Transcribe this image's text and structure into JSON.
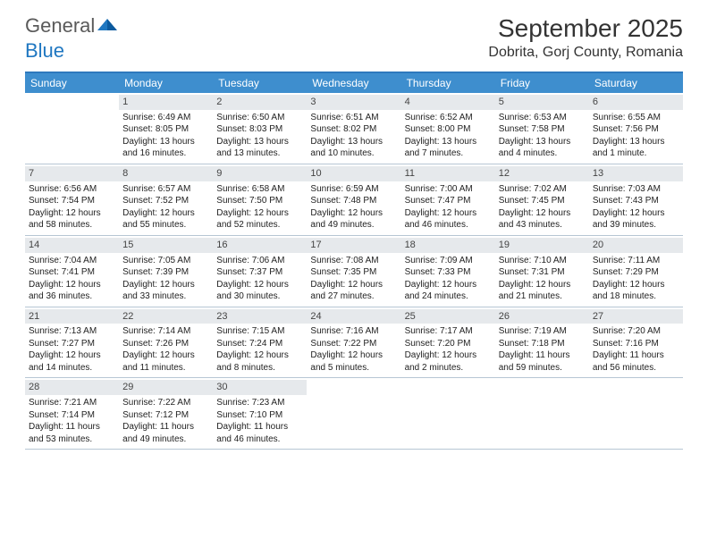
{
  "brand": {
    "part1": "General",
    "part2": "Blue"
  },
  "title": "September 2025",
  "location": "Dobrita, Gorj County, Romania",
  "colors": {
    "header_band": "#3e8ece",
    "header_border": "#2e79bd",
    "daynum_band": "#e6e9ec",
    "row_divider": "#b7c6d4",
    "text": "#222222",
    "logo_gray": "#5a5a5a",
    "logo_blue": "#1f77c1"
  },
  "weekdays": [
    "Sunday",
    "Monday",
    "Tuesday",
    "Wednesday",
    "Thursday",
    "Friday",
    "Saturday"
  ],
  "weeks": [
    [
      {
        "empty": true
      },
      {
        "n": "1",
        "sunrise": "6:49 AM",
        "sunset": "8:05 PM",
        "daylight": "13 hours and 16 minutes."
      },
      {
        "n": "2",
        "sunrise": "6:50 AM",
        "sunset": "8:03 PM",
        "daylight": "13 hours and 13 minutes."
      },
      {
        "n": "3",
        "sunrise": "6:51 AM",
        "sunset": "8:02 PM",
        "daylight": "13 hours and 10 minutes."
      },
      {
        "n": "4",
        "sunrise": "6:52 AM",
        "sunset": "8:00 PM",
        "daylight": "13 hours and 7 minutes."
      },
      {
        "n": "5",
        "sunrise": "6:53 AM",
        "sunset": "7:58 PM",
        "daylight": "13 hours and 4 minutes."
      },
      {
        "n": "6",
        "sunrise": "6:55 AM",
        "sunset": "7:56 PM",
        "daylight": "13 hours and 1 minute."
      }
    ],
    [
      {
        "n": "7",
        "sunrise": "6:56 AM",
        "sunset": "7:54 PM",
        "daylight": "12 hours and 58 minutes."
      },
      {
        "n": "8",
        "sunrise": "6:57 AM",
        "sunset": "7:52 PM",
        "daylight": "12 hours and 55 minutes."
      },
      {
        "n": "9",
        "sunrise": "6:58 AM",
        "sunset": "7:50 PM",
        "daylight": "12 hours and 52 minutes."
      },
      {
        "n": "10",
        "sunrise": "6:59 AM",
        "sunset": "7:48 PM",
        "daylight": "12 hours and 49 minutes."
      },
      {
        "n": "11",
        "sunrise": "7:00 AM",
        "sunset": "7:47 PM",
        "daylight": "12 hours and 46 minutes."
      },
      {
        "n": "12",
        "sunrise": "7:02 AM",
        "sunset": "7:45 PM",
        "daylight": "12 hours and 43 minutes."
      },
      {
        "n": "13",
        "sunrise": "7:03 AM",
        "sunset": "7:43 PM",
        "daylight": "12 hours and 39 minutes."
      }
    ],
    [
      {
        "n": "14",
        "sunrise": "7:04 AM",
        "sunset": "7:41 PM",
        "daylight": "12 hours and 36 minutes."
      },
      {
        "n": "15",
        "sunrise": "7:05 AM",
        "sunset": "7:39 PM",
        "daylight": "12 hours and 33 minutes."
      },
      {
        "n": "16",
        "sunrise": "7:06 AM",
        "sunset": "7:37 PM",
        "daylight": "12 hours and 30 minutes."
      },
      {
        "n": "17",
        "sunrise": "7:08 AM",
        "sunset": "7:35 PM",
        "daylight": "12 hours and 27 minutes."
      },
      {
        "n": "18",
        "sunrise": "7:09 AM",
        "sunset": "7:33 PM",
        "daylight": "12 hours and 24 minutes."
      },
      {
        "n": "19",
        "sunrise": "7:10 AM",
        "sunset": "7:31 PM",
        "daylight": "12 hours and 21 minutes."
      },
      {
        "n": "20",
        "sunrise": "7:11 AM",
        "sunset": "7:29 PM",
        "daylight": "12 hours and 18 minutes."
      }
    ],
    [
      {
        "n": "21",
        "sunrise": "7:13 AM",
        "sunset": "7:27 PM",
        "daylight": "12 hours and 14 minutes."
      },
      {
        "n": "22",
        "sunrise": "7:14 AM",
        "sunset": "7:26 PM",
        "daylight": "12 hours and 11 minutes."
      },
      {
        "n": "23",
        "sunrise": "7:15 AM",
        "sunset": "7:24 PM",
        "daylight": "12 hours and 8 minutes."
      },
      {
        "n": "24",
        "sunrise": "7:16 AM",
        "sunset": "7:22 PM",
        "daylight": "12 hours and 5 minutes."
      },
      {
        "n": "25",
        "sunrise": "7:17 AM",
        "sunset": "7:20 PM",
        "daylight": "12 hours and 2 minutes."
      },
      {
        "n": "26",
        "sunrise": "7:19 AM",
        "sunset": "7:18 PM",
        "daylight": "11 hours and 59 minutes."
      },
      {
        "n": "27",
        "sunrise": "7:20 AM",
        "sunset": "7:16 PM",
        "daylight": "11 hours and 56 minutes."
      }
    ],
    [
      {
        "n": "28",
        "sunrise": "7:21 AM",
        "sunset": "7:14 PM",
        "daylight": "11 hours and 53 minutes."
      },
      {
        "n": "29",
        "sunrise": "7:22 AM",
        "sunset": "7:12 PM",
        "daylight": "11 hours and 49 minutes."
      },
      {
        "n": "30",
        "sunrise": "7:23 AM",
        "sunset": "7:10 PM",
        "daylight": "11 hours and 46 minutes."
      },
      {
        "empty": true
      },
      {
        "empty": true
      },
      {
        "empty": true
      },
      {
        "empty": true
      }
    ]
  ],
  "labels": {
    "sunrise": "Sunrise:",
    "sunset": "Sunset:",
    "daylight": "Daylight:"
  }
}
